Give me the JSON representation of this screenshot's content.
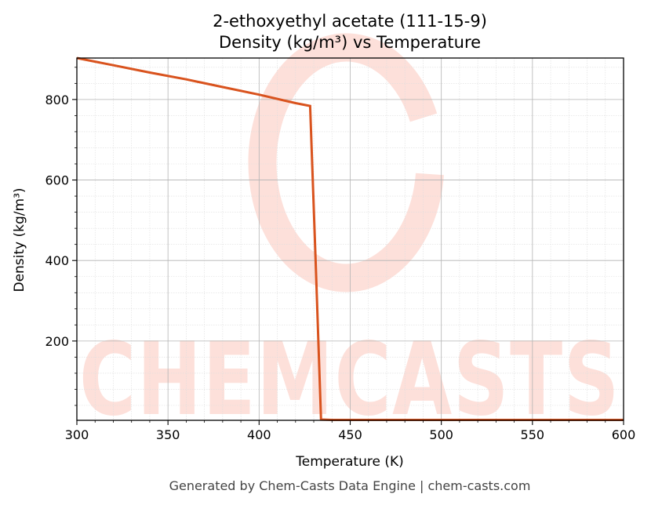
{
  "chart_data": {
    "type": "line",
    "title_line1": "2-ethoxyethyl acetate (111-15-9)",
    "title_line2": "Density (kg/m³) vs Temperature",
    "xlabel": "Temperature (K)",
    "ylabel": "Density (kg/m³)",
    "xlim": [
      300,
      600
    ],
    "ylim": [
      3,
      903
    ],
    "xticks": [
      300,
      350,
      400,
      450,
      500,
      550,
      600
    ],
    "yticks": [
      200,
      400,
      600,
      800
    ],
    "grid": true,
    "line_color": "#d9531e",
    "series": [
      {
        "x": [
          300,
          320,
          340,
          360,
          380,
          400,
          420,
          428,
          431,
          434,
          440,
          460,
          500,
          550,
          600
        ],
        "y": [
          903,
          885,
          867,
          850,
          831,
          812,
          791,
          784,
          400,
          5,
          4,
          4,
          4,
          4,
          4
        ]
      }
    ]
  },
  "watermark": {
    "text": "CHEMCASTS",
    "color": "#fde0da"
  },
  "footer": "Generated by Chem-Casts Data Engine | chem-casts.com"
}
